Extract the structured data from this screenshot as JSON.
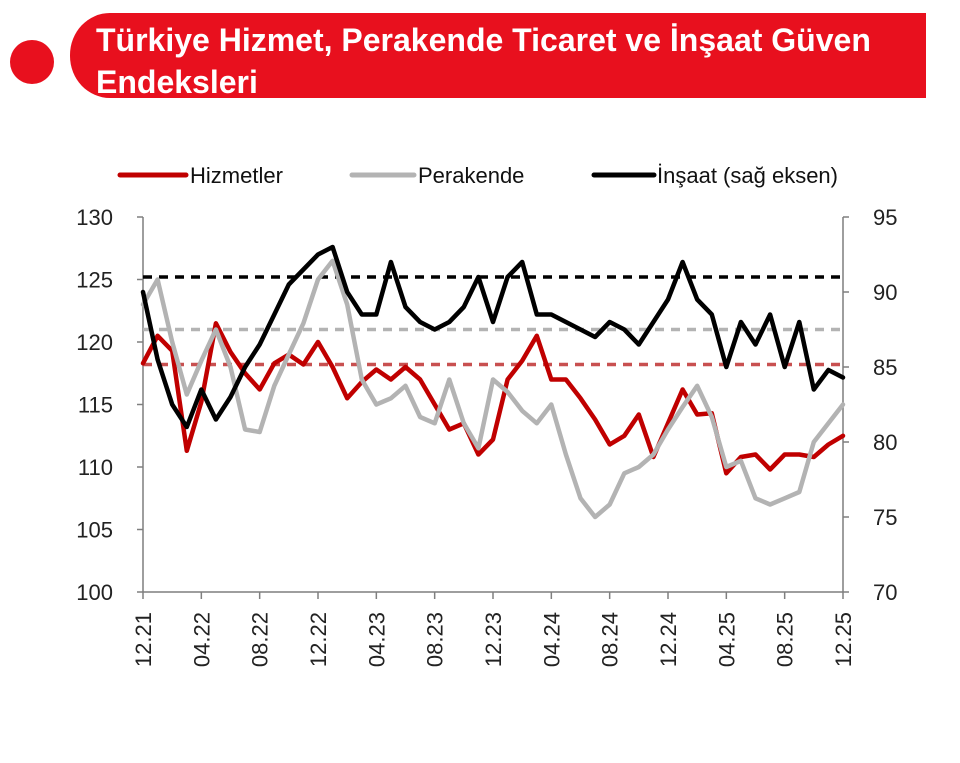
{
  "header": {
    "title": "Türkiye Hizmet, Perakende Ticaret ve İnşaat Güven Endeksleri"
  },
  "colors": {
    "banner": "#e8101e",
    "hizmetler": "#c00000",
    "perakende": "#b3b3b3",
    "insaat": "#000000"
  },
  "chart_data": {
    "type": "line",
    "title": "Türkiye Hizmet, Perakende Ticaret ve İnşaat Güven Endeksleri",
    "x_start": "12.21",
    "x_end": "12.25",
    "x_ticks": [
      "12.21",
      "04.22",
      "08.22",
      "12.22",
      "04.23",
      "08.23",
      "12.23",
      "04.24",
      "08.24",
      "12.24",
      "04.25",
      "08.25",
      "12.25"
    ],
    "y_left": {
      "range": [
        100,
        130
      ],
      "ticks": [
        "100",
        "105",
        "110",
        "115",
        "120",
        "125",
        "130"
      ]
    },
    "y_right": {
      "label": "sağ eksen",
      "range": [
        70,
        95
      ],
      "ticks": [
        "70",
        "75",
        "80",
        "85",
        "90",
        "95"
      ]
    },
    "legend": {
      "placement": "top",
      "entries": [
        "Hizmetler",
        "Perakende",
        "İnşaat (sağ eksen)"
      ]
    },
    "grid": false,
    "series": [
      {
        "name": "Hizmetler",
        "axis": "left",
        "color": "#c00000",
        "values": [
          118.3,
          120.5,
          119.3,
          111.3,
          115.2,
          121.5,
          119.2,
          117.5,
          116.2,
          118.3,
          119.0,
          118.2,
          120.0,
          118.0,
          115.5,
          116.8,
          117.8,
          117.0,
          118.0,
          117.0,
          115.0,
          113.0,
          113.5,
          111.0,
          112.2,
          117.0,
          118.5,
          120.5,
          117.0,
          117.0,
          115.5,
          113.8,
          111.8,
          112.5,
          114.2,
          110.8,
          113.5,
          116.2,
          114.2,
          114.3,
          109.5,
          110.8,
          111.0,
          109.8,
          111.0,
          111.0,
          110.8,
          111.8,
          112.5
        ]
      },
      {
        "name": "Perakende",
        "axis": "left",
        "color": "#b3b3b3",
        "values": [
          123.0,
          125.0,
          120.0,
          115.8,
          118.5,
          121.0,
          118.0,
          113.0,
          112.8,
          116.5,
          119.0,
          121.5,
          125.0,
          126.5,
          123.0,
          117.0,
          115.0,
          115.5,
          116.5,
          114.0,
          113.5,
          117.0,
          113.5,
          111.5,
          117.0,
          116.0,
          114.5,
          113.5,
          115.0,
          111.0,
          107.5,
          106.0,
          107.0,
          109.5,
          110.0,
          111.0,
          113.0,
          114.8,
          116.5,
          114.0,
          110.0,
          110.5,
          107.5,
          107.0,
          107.5,
          108.0,
          112.0,
          113.5,
          115.0
        ]
      },
      {
        "name": "İnşaat (sağ eksen)",
        "axis": "right",
        "color": "#000000",
        "values": [
          90.0,
          85.5,
          82.5,
          81.0,
          83.5,
          81.5,
          83.0,
          85.0,
          86.5,
          88.5,
          90.5,
          91.5,
          92.5,
          93.0,
          90.0,
          88.5,
          88.5,
          92.0,
          89.0,
          88.0,
          87.5,
          88.0,
          89.0,
          91.0,
          88.0,
          91.0,
          92.0,
          88.5,
          88.5,
          88.0,
          87.5,
          87.0,
          88.0,
          87.5,
          86.5,
          88.0,
          89.5,
          92.0,
          89.5,
          88.5,
          85.0,
          88.0,
          86.5,
          88.5,
          85.0,
          88.0,
          83.5,
          84.8,
          84.3
        ]
      }
    ],
    "reference_lines": [
      {
        "series": "İnşaat (sağ eksen)",
        "axis": "right",
        "value": 91.0,
        "style": "dashed",
        "color": "#000000"
      },
      {
        "series": "Perakende",
        "axis": "left",
        "value": 121.0,
        "style": "dashed",
        "color": "#b3b3b3"
      },
      {
        "series": "Hizmetler",
        "axis": "left",
        "value": 118.2,
        "style": "dashed",
        "color": "#c85050"
      }
    ]
  }
}
